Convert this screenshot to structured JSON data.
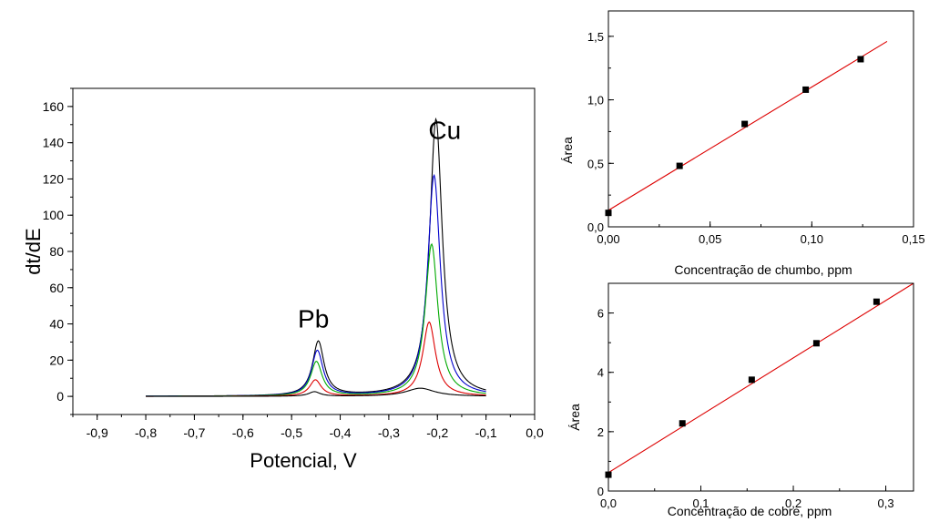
{
  "chart_data": [
    {
      "type": "line",
      "xlabel": "Potencial, V",
      "ylabel": "dt/dE",
      "xlim": [
        -0.95,
        0.0
      ],
      "ylim": [
        -10,
        170
      ],
      "xticks": [
        "-0,9",
        "-0,8",
        "-0,7",
        "-0,6",
        "-0,5",
        "-0,4",
        "-0,3",
        "-0,2",
        "-0,1",
        "0,0"
      ],
      "yticks": [
        "0",
        "20",
        "40",
        "60",
        "80",
        "100",
        "120",
        "140",
        "160"
      ],
      "annotations": [
        {
          "text": "Pb",
          "x": -0.455,
          "y": 38
        },
        {
          "text": "Cu",
          "x": -0.185,
          "y": 142
        }
      ],
      "series": [
        {
          "color": "#000000",
          "peaks": [
            {
              "center": -0.445,
              "height": 30
            },
            {
              "center": -0.203,
              "height": 153
            }
          ]
        },
        {
          "color": "#0000cc",
          "peaks": [
            {
              "center": -0.447,
              "height": 25
            },
            {
              "center": -0.207,
              "height": 122
            }
          ]
        },
        {
          "color": "#00aa00",
          "peaks": [
            {
              "center": -0.449,
              "height": 19
            },
            {
              "center": -0.212,
              "height": 84
            }
          ]
        },
        {
          "color": "#dd0000",
          "peaks": [
            {
              "center": -0.451,
              "height": 9
            },
            {
              "center": -0.217,
              "height": 41
            }
          ]
        },
        {
          "color": "#000000",
          "peaks": [
            {
              "center": -0.453,
              "height": 2.5
            },
            {
              "center": -0.235,
              "height": 4.5
            }
          ]
        }
      ]
    },
    {
      "type": "scatter",
      "xlabel": "Concentração de chumbo, ppm",
      "ylabel": "Área",
      "xlim": [
        0.0,
        0.15
      ],
      "ylim": [
        0.0,
        1.7
      ],
      "xticks": [
        "0,00",
        "0,05",
        "0,10",
        "0,15"
      ],
      "yticks": [
        "0,0",
        "0,5",
        "1,0",
        "1,5"
      ],
      "points": [
        {
          "x": 0.0,
          "y": 0.11
        },
        {
          "x": 0.035,
          "y": 0.48
        },
        {
          "x": 0.067,
          "y": 0.81
        },
        {
          "x": 0.097,
          "y": 1.08
        },
        {
          "x": 0.124,
          "y": 1.32
        }
      ],
      "fit": {
        "color": "#dd0000",
        "x": [
          0.0,
          0.137
        ],
        "y": [
          0.13,
          1.46
        ]
      }
    },
    {
      "type": "scatter",
      "xlabel": "Concentração de cobre, ppm",
      "ylabel": "Área",
      "xlim": [
        0.0,
        0.33
      ],
      "ylim": [
        0,
        7
      ],
      "xticks": [
        "0,0",
        "0,1",
        "0,2",
        "0,3"
      ],
      "yticks": [
        "0",
        "2",
        "4",
        "6"
      ],
      "points": [
        {
          "x": 0.0,
          "y": 0.55
        },
        {
          "x": 0.08,
          "y": 2.28
        },
        {
          "x": 0.155,
          "y": 3.75
        },
        {
          "x": 0.225,
          "y": 4.98
        },
        {
          "x": 0.29,
          "y": 6.38
        }
      ],
      "fit": {
        "color": "#dd0000",
        "x": [
          0.0,
          0.33
        ],
        "y": [
          0.62,
          7.0
        ]
      }
    }
  ]
}
